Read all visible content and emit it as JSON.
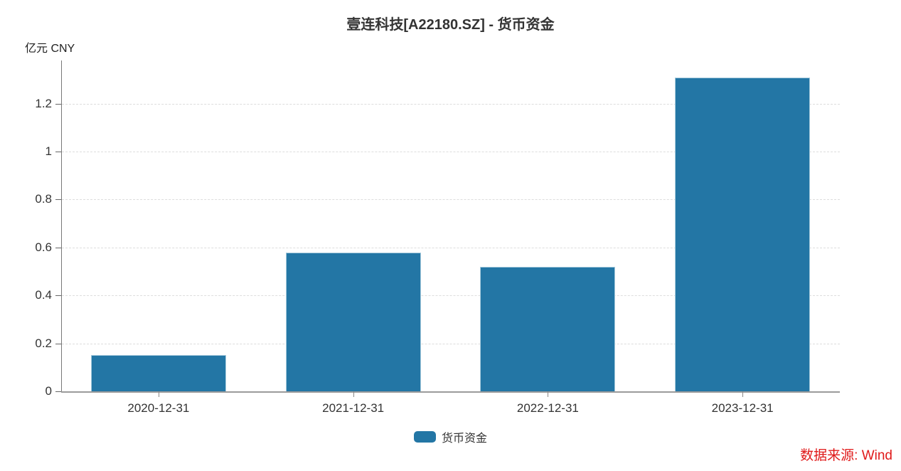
{
  "chart_data": {
    "type": "bar",
    "title": "壹连科技[A22180.SZ] - 货币资金",
    "unit_label": "亿元 CNY",
    "categories": [
      "2020-12-31",
      "2021-12-31",
      "2022-12-31",
      "2023-12-31"
    ],
    "series": [
      {
        "name": "货币资金",
        "values": [
          0.15,
          0.58,
          0.52,
          1.31
        ]
      }
    ],
    "legend": {
      "items": [
        "货币资金"
      ],
      "position": "bottom"
    },
    "xlabel": "",
    "ylabel": "亿元 CNY",
    "y_ticks": [
      0,
      0.2,
      0.4,
      0.6,
      0.8,
      1,
      1.2
    ],
    "y_tick_labels": [
      "0",
      "0.2",
      "0.4",
      "0.6",
      "0.8",
      "1",
      "1.2"
    ],
    "ylim": [
      0,
      1.38
    ],
    "grid": true,
    "gridline_style": "dashed",
    "source_note": "数据来源: Wind",
    "colors": {
      "bar": "#2376a5",
      "bar_border": "#a7cbdd",
      "source_text": "#e01a1a",
      "axis": "#777777",
      "gridline": "#dddddd",
      "text": "#333333"
    }
  }
}
